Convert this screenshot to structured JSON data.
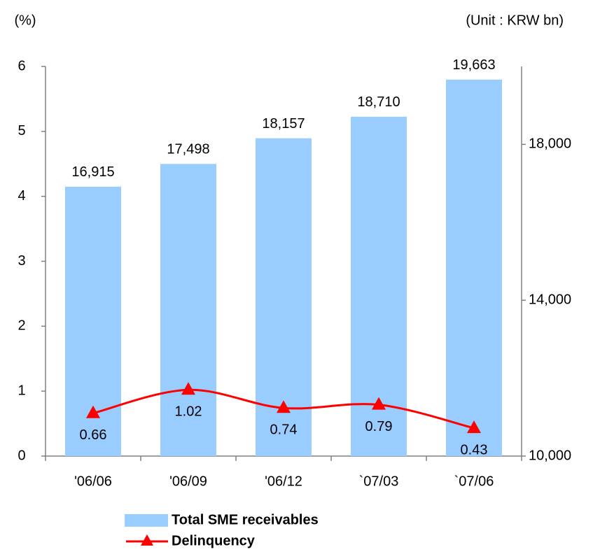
{
  "chart_data": {
    "type": "bar",
    "y_unit_label": "(%)",
    "y2_unit_label": "(Unit : KRW bn)",
    "categories": [
      "'06/06",
      "'06/09",
      "'06/12",
      "`07/03",
      "`07/06"
    ],
    "series": [
      {
        "name": "Total SME receivables",
        "type": "bar",
        "axis": "y2",
        "color": "#99ccff",
        "values": [
          16915,
          17498,
          18157,
          18710,
          19663
        ],
        "value_labels": [
          "16,915",
          "17,498",
          "18,157",
          "18,710",
          "19,663"
        ]
      },
      {
        "name": "Delinquency",
        "type": "line",
        "axis": "y",
        "color": "#ff0000",
        "values": [
          0.66,
          1.02,
          0.74,
          0.79,
          0.43
        ]
      }
    ],
    "ylim": [
      0,
      6
    ],
    "yticks": [
      0,
      1,
      2,
      3,
      4,
      5,
      6
    ],
    "y2lim": [
      10000,
      20000
    ],
    "y2ticks": [
      {
        "value": 10000,
        "label": "10,000"
      },
      {
        "value": 14000,
        "label": "14,000"
      },
      {
        "value": 18000,
        "label": "18,000"
      }
    ],
    "legend": "bottom"
  }
}
